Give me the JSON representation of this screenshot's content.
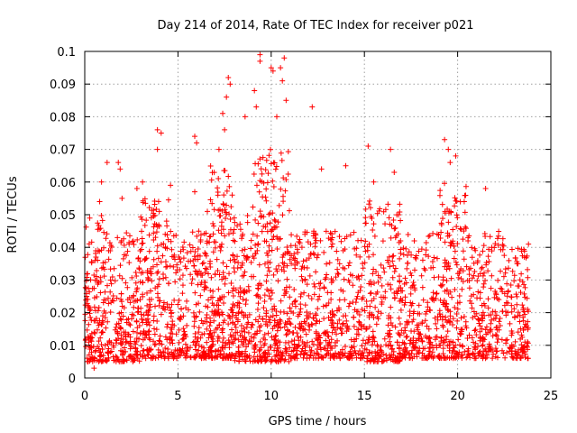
{
  "chart_data": {
    "type": "scatter",
    "title": "Day 214 of 2014, Rate Of TEC Index for receiver p021",
    "xlabel": "GPS time / hours",
    "ylabel": "ROTI / TECUs",
    "xlim": [
      0,
      25
    ],
    "ylim": [
      0,
      0.1
    ],
    "xticks": [
      0,
      5,
      10,
      15,
      20,
      25
    ],
    "xtick_labels": [
      "0",
      "5",
      "10",
      "15",
      "20",
      "25"
    ],
    "yticks": [
      0,
      0.01,
      0.02,
      0.03,
      0.04,
      0.05,
      0.06,
      0.07,
      0.08,
      0.09,
      0.1
    ],
    "ytick_labels": [
      "0",
      "0.01",
      "0.02",
      "0.03",
      "0.04",
      "0.05",
      "0.06",
      "0.07",
      "0.08",
      "0.09",
      "0.1"
    ],
    "grid": true,
    "marker": "+",
    "color": "#ff0000",
    "series": [
      {
        "name": "ROTI",
        "points": [
          [
            0.1,
            0.025
          ],
          [
            0.3,
            0.021
          ],
          [
            0.5,
            0.014
          ],
          [
            0.5,
            0.003
          ],
          [
            0.8,
            0.054
          ],
          [
            0.9,
            0.06
          ],
          [
            1.2,
            0.066
          ],
          [
            1.8,
            0.066
          ],
          [
            1.9,
            0.064
          ],
          [
            2.0,
            0.055
          ],
          [
            2.8,
            0.058
          ],
          [
            3.1,
            0.06
          ],
          [
            3.9,
            0.076
          ],
          [
            4.1,
            0.075
          ],
          [
            3.9,
            0.07
          ],
          [
            4.6,
            0.059
          ],
          [
            5.9,
            0.074
          ],
          [
            6.0,
            0.072
          ],
          [
            5.9,
            0.057
          ],
          [
            7.2,
            0.07
          ],
          [
            7.5,
            0.076
          ],
          [
            7.4,
            0.081
          ],
          [
            7.6,
            0.086
          ],
          [
            7.7,
            0.092
          ],
          [
            7.8,
            0.09
          ],
          [
            8.6,
            0.08
          ],
          [
            9.1,
            0.088
          ],
          [
            9.2,
            0.083
          ],
          [
            9.4,
            0.097
          ],
          [
            9.4,
            0.099
          ],
          [
            10.0,
            0.095
          ],
          [
            10.1,
            0.094
          ],
          [
            10.3,
            0.08
          ],
          [
            10.5,
            0.095
          ],
          [
            10.6,
            0.091
          ],
          [
            10.7,
            0.098
          ],
          [
            10.8,
            0.085
          ],
          [
            12.2,
            0.083
          ],
          [
            12.7,
            0.064
          ],
          [
            14.0,
            0.065
          ],
          [
            15.2,
            0.071
          ],
          [
            15.5,
            0.06
          ],
          [
            16.4,
            0.07
          ],
          [
            16.6,
            0.063
          ],
          [
            19.3,
            0.073
          ],
          [
            19.5,
            0.07
          ],
          [
            19.6,
            0.066
          ],
          [
            19.9,
            0.068
          ],
          [
            21.5,
            0.058
          ],
          [
            23.8,
            0.041
          ],
          [
            23.7,
            0.016
          ]
        ],
        "bands": [
          {
            "x_start": 0.0,
            "x_end": 1.0,
            "y_min": 0.005,
            "y_max": 0.05,
            "density": 140
          },
          {
            "x_start": 1.0,
            "x_end": 3.0,
            "y_min": 0.005,
            "y_max": 0.045,
            "density": 230
          },
          {
            "x_start": 3.0,
            "x_end": 4.5,
            "y_min": 0.006,
            "y_max": 0.055,
            "density": 200
          },
          {
            "x_start": 4.5,
            "x_end": 6.5,
            "y_min": 0.006,
            "y_max": 0.045,
            "density": 220
          },
          {
            "x_start": 6.5,
            "x_end": 8.0,
            "y_min": 0.006,
            "y_max": 0.065,
            "density": 240
          },
          {
            "x_start": 8.0,
            "x_end": 9.0,
            "y_min": 0.005,
            "y_max": 0.05,
            "density": 130
          },
          {
            "x_start": 9.0,
            "x_end": 11.0,
            "y_min": 0.005,
            "y_max": 0.07,
            "density": 300
          },
          {
            "x_start": 11.0,
            "x_end": 13.0,
            "y_min": 0.006,
            "y_max": 0.045,
            "density": 220
          },
          {
            "x_start": 13.0,
            "x_end": 15.0,
            "y_min": 0.006,
            "y_max": 0.045,
            "density": 200
          },
          {
            "x_start": 15.0,
            "x_end": 17.0,
            "y_min": 0.005,
            "y_max": 0.055,
            "density": 240
          },
          {
            "x_start": 17.0,
            "x_end": 19.0,
            "y_min": 0.006,
            "y_max": 0.045,
            "density": 200
          },
          {
            "x_start": 19.0,
            "x_end": 20.5,
            "y_min": 0.006,
            "y_max": 0.06,
            "density": 200
          },
          {
            "x_start": 20.5,
            "x_end": 22.5,
            "y_min": 0.006,
            "y_max": 0.045,
            "density": 200
          },
          {
            "x_start": 22.5,
            "x_end": 23.8,
            "y_min": 0.006,
            "y_max": 0.04,
            "density": 140
          }
        ]
      }
    ]
  }
}
